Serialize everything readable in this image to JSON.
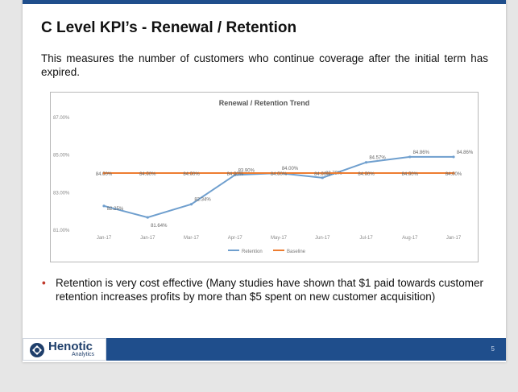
{
  "slide": {
    "title": "C Level KPI’s - Renewal / Retention",
    "intro": "This measures the number of customers who continue coverage after the initial term has expired.",
    "bullet_text": "Retention is very cost effective (Many studies have shown that $1 paid towards customer retention increases profits by more than $5 spent on new customer acquisition)",
    "page_number": "5"
  },
  "logo": {
    "name": "Henotic",
    "sub": "Analytics"
  },
  "colors": {
    "brand_blue": "#1f4e8c",
    "retention_line": "#6f9fce",
    "baseline_line": "#ed7d31",
    "bullet": "#c0392b"
  },
  "chart_data": {
    "type": "line",
    "title": "Renewal / Retention Trend",
    "categories": [
      "Jan-17",
      "Jan-17",
      "Mar-17",
      "Apr-17",
      "May-17",
      "Jun-17",
      "Jul-17",
      "Aug-17",
      "Jan-17"
    ],
    "y_ticks": [
      "87.00%",
      "85.00%",
      "83.00%",
      "81.00%"
    ],
    "ylim": [
      81,
      87
    ],
    "series": [
      {
        "name": "Retention",
        "color": "#6f9fce",
        "values": [
          82.25,
          81.64,
          82.34,
          83.9,
          84.0,
          83.75,
          84.57,
          84.86,
          84.86
        ],
        "labels": [
          "82.25%",
          "81.64%",
          "82.34%",
          "83.90%",
          "84.00%",
          "83.75%",
          "84.57%",
          "84.86%",
          "84.86%"
        ]
      },
      {
        "name": "Baseline",
        "color": "#ed7d31",
        "values": [
          84.0,
          84.0,
          84.0,
          84.0,
          84.0,
          84.0,
          84.0,
          84.0,
          84.0
        ],
        "labels": [
          "84.00%",
          "84.00%",
          "84.00%",
          "84.00%",
          "84.00%",
          "84.00%",
          "84.00%",
          "84.00%",
          "84.00%"
        ]
      }
    ],
    "legend": [
      "Retention",
      "Baseline"
    ],
    "legend_position": "bottom",
    "grid": false
  }
}
